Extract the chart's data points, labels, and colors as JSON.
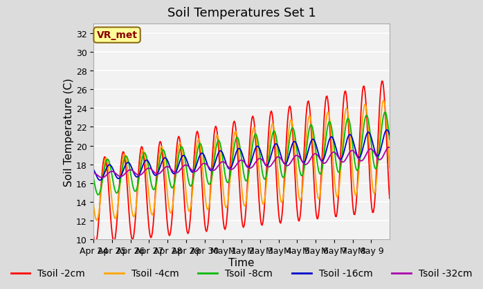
{
  "title": "Soil Temperatures Set 1",
  "xlabel": "Time",
  "ylabel": "Soil Temperature (C)",
  "ylim": [
    10,
    33
  ],
  "yticks": [
    10,
    12,
    14,
    16,
    18,
    20,
    22,
    24,
    26,
    28,
    30,
    32
  ],
  "x_labels": [
    "Apr 24",
    "Apr 25",
    "Apr 26",
    "Apr 27",
    "Apr 28",
    "Apr 29",
    "Apr 30",
    "May 1",
    "May 2",
    "May 3",
    "May 4",
    "May 5",
    "May 6",
    "May 7",
    "May 8",
    "May 9"
  ],
  "annotation_text": "VR_met",
  "annotation_color": "#8B0000",
  "annotation_bg": "#FFFF99",
  "line_colors": {
    "Tsoil -2cm": "#FF0000",
    "Tsoil -4cm": "#FFA500",
    "Tsoil -8cm": "#00BB00",
    "Tsoil -16cm": "#0000CC",
    "Tsoil -32cm": "#AA00AA"
  },
  "legend_labels": [
    "Tsoil -2cm",
    "Tsoil -4cm",
    "Tsoil -8cm",
    "Tsoil -16cm",
    "Tsoil -32cm"
  ],
  "title_fontsize": 13,
  "axis_label_fontsize": 11,
  "tick_fontsize": 9,
  "legend_fontsize": 10,
  "n_days": 16
}
